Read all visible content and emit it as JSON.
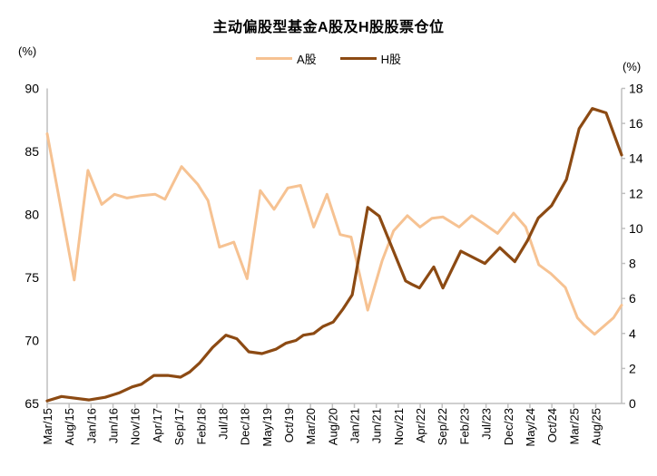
{
  "chart_data": {
    "type": "line",
    "title": "主动偏股型基金A股及H股股票仓位",
    "grid": false,
    "legend_position": "top-center",
    "left_axis": {
      "unit": "(%)",
      "min": 65,
      "max": 90,
      "ticks": [
        90,
        85,
        80,
        75,
        70,
        65
      ]
    },
    "right_axis": {
      "unit": "(%)",
      "min": 0,
      "max": 18,
      "ticks": [
        18,
        16,
        14,
        12,
        10,
        8,
        6,
        4,
        2,
        0
      ]
    },
    "x_axis": {
      "tick_labels": [
        "Mar/15",
        "Aug/15",
        "Jan/16",
        "Jun/16",
        "Nov/16",
        "Apr/17",
        "Sep/17",
        "Feb/18",
        "Jul/18",
        "Dec/18",
        "May/19",
        "Oct/19",
        "Mar/20",
        "Aug/20",
        "Jan/21",
        "Jun/21",
        "Nov/21",
        "Apr/22",
        "Sep/22",
        "Feb/23",
        "Jul/23",
        "Dec/23",
        "May/24",
        "Oct/24",
        "Mar/25",
        "Aug/25"
      ],
      "label_interval_months": 5
    },
    "axis_color": "#BFBFBF",
    "text_color": "#000000",
    "series": [
      {
        "name": "A股",
        "axis": "left",
        "color": "#F6C292",
        "points": [
          [
            0.0,
            86.4
          ],
          [
            0.047,
            74.8
          ],
          [
            0.071,
            83.5
          ],
          [
            0.095,
            80.8
          ],
          [
            0.117,
            81.6
          ],
          [
            0.139,
            81.3
          ],
          [
            0.164,
            81.5
          ],
          [
            0.188,
            81.6
          ],
          [
            0.205,
            81.2
          ],
          [
            0.234,
            83.8
          ],
          [
            0.262,
            82.4
          ],
          [
            0.28,
            81.1
          ],
          [
            0.3,
            77.4
          ],
          [
            0.325,
            77.8
          ],
          [
            0.348,
            74.9
          ],
          [
            0.371,
            81.9
          ],
          [
            0.395,
            80.4
          ],
          [
            0.419,
            82.1
          ],
          [
            0.441,
            82.3
          ],
          [
            0.464,
            79.0
          ],
          [
            0.487,
            81.6
          ],
          [
            0.51,
            78.4
          ],
          [
            0.529,
            78.2
          ],
          [
            0.558,
            72.4
          ],
          [
            0.583,
            76.3
          ],
          [
            0.603,
            78.7
          ],
          [
            0.627,
            79.9
          ],
          [
            0.649,
            79.0
          ],
          [
            0.67,
            79.7
          ],
          [
            0.689,
            79.8
          ],
          [
            0.717,
            79.0
          ],
          [
            0.739,
            79.9
          ],
          [
            0.762,
            79.2
          ],
          [
            0.784,
            78.5
          ],
          [
            0.812,
            80.1
          ],
          [
            0.833,
            79.0
          ],
          [
            0.856,
            76.0
          ],
          [
            0.877,
            75.3
          ],
          [
            0.902,
            74.2
          ],
          [
            0.923,
            71.8
          ],
          [
            0.935,
            71.2
          ],
          [
            0.953,
            70.5
          ],
          [
            0.986,
            71.8
          ],
          [
            1.0,
            72.8
          ]
        ]
      },
      {
        "name": "H股",
        "axis": "right",
        "color": "#8C4A13",
        "points": [
          [
            0.0,
            0.15
          ],
          [
            0.025,
            0.4
          ],
          [
            0.073,
            0.2
          ],
          [
            0.101,
            0.35
          ],
          [
            0.125,
            0.6
          ],
          [
            0.148,
            0.95
          ],
          [
            0.164,
            1.1
          ],
          [
            0.186,
            1.6
          ],
          [
            0.21,
            1.6
          ],
          [
            0.232,
            1.5
          ],
          [
            0.248,
            1.8
          ],
          [
            0.265,
            2.3
          ],
          [
            0.288,
            3.2
          ],
          [
            0.311,
            3.9
          ],
          [
            0.33,
            3.7
          ],
          [
            0.351,
            2.95
          ],
          [
            0.374,
            2.85
          ],
          [
            0.398,
            3.1
          ],
          [
            0.416,
            3.45
          ],
          [
            0.433,
            3.6
          ],
          [
            0.446,
            3.9
          ],
          [
            0.464,
            4.0
          ],
          [
            0.48,
            4.4
          ],
          [
            0.498,
            4.65
          ],
          [
            0.515,
            5.4
          ],
          [
            0.531,
            6.2
          ],
          [
            0.558,
            11.2
          ],
          [
            0.578,
            10.7
          ],
          [
            0.624,
            7.0
          ],
          [
            0.635,
            6.8
          ],
          [
            0.648,
            6.6
          ],
          [
            0.673,
            7.8
          ],
          [
            0.689,
            6.6
          ],
          [
            0.72,
            8.7
          ],
          [
            0.762,
            8.0
          ],
          [
            0.788,
            8.9
          ],
          [
            0.814,
            8.1
          ],
          [
            0.836,
            9.3
          ],
          [
            0.855,
            10.6
          ],
          [
            0.878,
            11.3
          ],
          [
            0.904,
            12.8
          ],
          [
            0.926,
            15.7
          ],
          [
            0.949,
            16.85
          ],
          [
            0.973,
            16.6
          ],
          [
            1.0,
            14.2
          ]
        ]
      }
    ]
  }
}
